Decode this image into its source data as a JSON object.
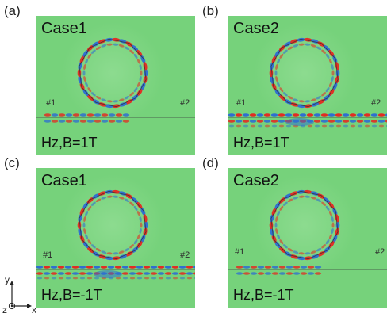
{
  "panels": [
    {
      "letter": "(a)",
      "case": "Case1",
      "field": "Hz,B=1T",
      "port1": "#1",
      "port2": "#2",
      "coupling": "weak"
    },
    {
      "letter": "(b)",
      "case": "Case2",
      "field": "Hz,B=1T",
      "port1": "#1",
      "port2": "#2",
      "coupling": "strong"
    },
    {
      "letter": "(c)",
      "case": "Case1",
      "field": "Hz,B=-1T",
      "port1": "#1",
      "port2": "#2",
      "coupling": "strong"
    },
    {
      "letter": "(d)",
      "case": "Case2",
      "field": "Hz,B=-1T",
      "port1": "#1",
      "port2": "#2",
      "coupling": "weak"
    }
  ],
  "axes": {
    "y": "y",
    "z": "z",
    "x": "x"
  },
  "colors": {
    "background_field": "#76d27b",
    "positive": "#e8231e",
    "negative": "#2a68d6"
  }
}
